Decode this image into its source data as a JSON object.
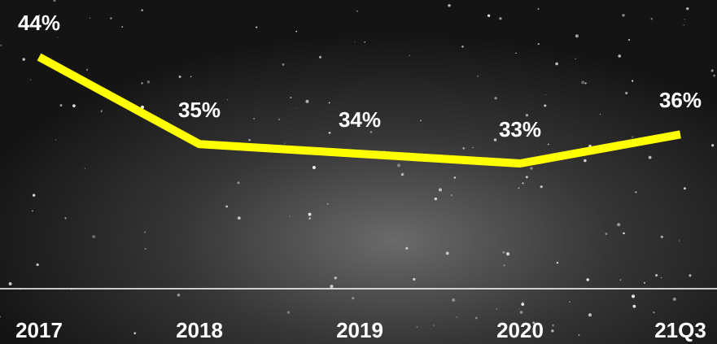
{
  "chart_data": {
    "type": "line",
    "categories": [
      "2017",
      "2018",
      "2019",
      "2020",
      "21Q3"
    ],
    "values": [
      44,
      35,
      34,
      33,
      36
    ],
    "value_labels": [
      "44%",
      "35%",
      "34%",
      "33%",
      "36%"
    ],
    "color": "#ffff00"
  }
}
